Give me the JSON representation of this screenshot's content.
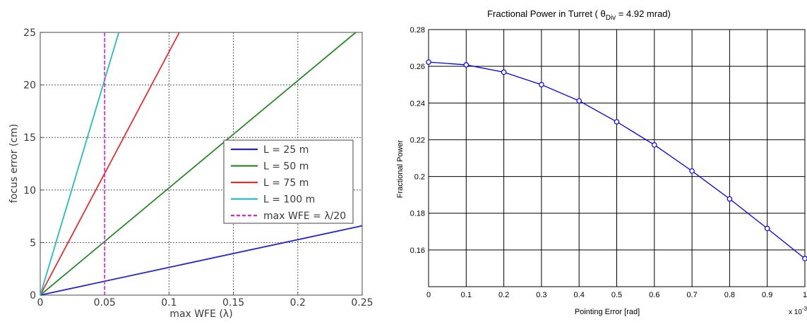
{
  "chart_data": [
    {
      "type": "line",
      "title": "",
      "xlabel": "max WFE (λ)",
      "ylabel": "focus error (cm)",
      "xlim": [
        0,
        0.25
      ],
      "ylim": [
        0,
        25
      ],
      "x_ticks": [
        "0",
        "0.05",
        "0.1",
        "0.15",
        "0.2",
        "0.25"
      ],
      "y_ticks": [
        "0",
        "5",
        "10",
        "15",
        "20",
        "25"
      ],
      "grid": true,
      "legend_position": "right",
      "series": [
        {
          "name": "L = 25 m",
          "color": "#2323d8",
          "x": [
            0,
            0.25
          ],
          "y": [
            0,
            6.6
          ]
        },
        {
          "name": "L = 50 m",
          "color": "#2a8a2a",
          "x": [
            0,
            0.245
          ],
          "y": [
            0,
            25
          ]
        },
        {
          "name": "L = 75 m",
          "color": "#e03030",
          "x": [
            0,
            0.108
          ],
          "y": [
            0,
            25
          ]
        },
        {
          "name": "L = 100 m",
          "color": "#2ab8c2",
          "x": [
            0,
            0.061
          ],
          "y": [
            0,
            25
          ]
        },
        {
          "name": "max WFE = λ/20",
          "color": "#e020e0",
          "dashed": true,
          "x": [
            0.05,
            0.05
          ],
          "y": [
            0,
            25
          ]
        }
      ]
    },
    {
      "type": "line",
      "title_main": "Fractional Power in Turret ( ",
      "title_theta": "θ",
      "title_sub": "Div",
      "title_tail": " = 4.92 mrad)",
      "xlabel": "Pointing Error [rad]",
      "ylabel": "Fractional Power",
      "x_multiplier_base": "x 10",
      "x_multiplier_exp": "-3",
      "xlim": [
        0,
        1
      ],
      "ylim": [
        0.14,
        0.28
      ],
      "x_ticks": [
        "0",
        "0.1",
        "0.2",
        "0.3",
        "0.4",
        "0.5",
        "0.6",
        "0.7",
        "0.8",
        "0.9",
        "1"
      ],
      "y_ticks": [
        "0.16",
        "0.18",
        "0.2",
        "0.22",
        "0.24",
        "0.26",
        "0.28"
      ],
      "grid": true,
      "series": [
        {
          "name": "",
          "color": "#0000ee",
          "markers": "circle",
          "x": [
            0,
            0.1,
            0.2,
            0.3,
            0.4,
            0.5,
            0.6,
            0.7,
            0.8,
            0.9,
            1.0
          ],
          "y": [
            0.2623,
            0.2608,
            0.2568,
            0.25,
            0.2412,
            0.2298,
            0.2172,
            0.203,
            0.1878,
            0.1717,
            0.1553
          ]
        }
      ]
    }
  ]
}
